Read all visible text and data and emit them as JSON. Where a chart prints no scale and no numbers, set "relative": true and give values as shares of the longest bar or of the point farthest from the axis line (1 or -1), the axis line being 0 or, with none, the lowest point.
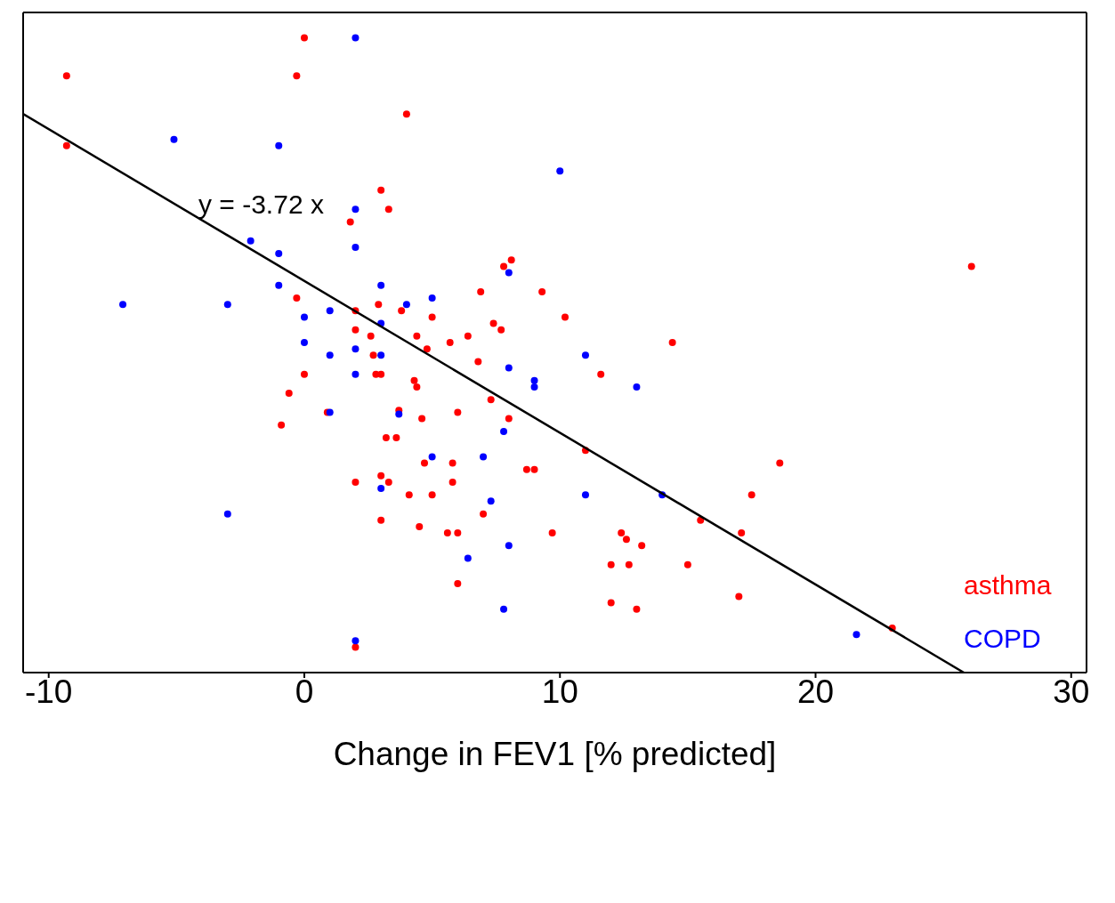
{
  "chart_data": {
    "type": "scatter",
    "xlabel": "Change in FEV1 [% predicted]",
    "xlim": [
      -11,
      30.6
    ],
    "xticks": [
      -10,
      0,
      10,
      20,
      30
    ],
    "relative": true,
    "tick_labels": "x",
    "legend": "bottom right",
    "marker": "circle",
    "annotations": [
      "y = -3.72 x"
    ],
    "series": [
      {
        "name": "asthma",
        "color": "#ff0000",
        "x": [
          0,
          -9.3,
          -0.3,
          4.0,
          -9.3,
          3.0,
          3.3,
          1.8,
          8.1,
          7.8,
          26.1,
          9.3,
          6.9,
          -0.3,
          2.9,
          3.8,
          5.0,
          2.0,
          10.2,
          7.4,
          7.7,
          2.0,
          6.4,
          2.6,
          4.4,
          5.7,
          14.4,
          4.8,
          2.7,
          6.8,
          3.0,
          2.8,
          0,
          11.6,
          4.3,
          4.4,
          -0.6,
          7.3,
          3.7,
          6.0,
          0.9,
          8.0,
          4.6,
          -0.9,
          3.2,
          3.6,
          11.0,
          4.7,
          5.8,
          18.6,
          9.0,
          8.7,
          3.0,
          3.3,
          2.0,
          5.8,
          4.1,
          5.0,
          17.5,
          7.0,
          3.0,
          15.5,
          4.5,
          6.0,
          5.6,
          9.7,
          12.4,
          17.1,
          12.6,
          13.2,
          12.0,
          12.7,
          15.0,
          6.0,
          12.0,
          13.0,
          17.0,
          23.0,
          2.0
        ],
        "values": [
          1.0,
          0.94,
          0.94,
          0.88,
          0.83,
          0.76,
          0.73,
          0.71,
          0.65,
          0.64,
          0.64,
          0.6,
          0.6,
          0.59,
          0.58,
          0.57,
          0.56,
          0.57,
          0.56,
          0.55,
          0.54,
          0.54,
          0.53,
          0.53,
          0.53,
          0.52,
          0.52,
          0.51,
          0.5,
          0.49,
          0.47,
          0.47,
          0.47,
          0.47,
          0.46,
          0.45,
          0.44,
          0.43,
          0.413,
          0.41,
          0.41,
          0.4,
          0.4,
          0.39,
          0.37,
          0.37,
          0.35,
          0.33,
          0.33,
          0.33,
          0.32,
          0.32,
          0.31,
          0.3,
          0.3,
          0.3,
          0.28,
          0.28,
          0.28,
          0.25,
          0.24,
          0.24,
          0.23,
          0.22,
          0.22,
          0.22,
          0.22,
          0.22,
          0.21,
          0.2,
          0.17,
          0.17,
          0.17,
          0.14,
          0.11,
          0.1,
          0.12,
          0.07,
          0.04
        ]
      },
      {
        "name": "COPD",
        "color": "#0000ff",
        "x": [
          2.0,
          -5.1,
          -1.0,
          10.0,
          2.0,
          -2.1,
          -1.0,
          2.0,
          8.0,
          -1.0,
          3.0,
          -7.1,
          -3.0,
          4.0,
          5.0,
          1.0,
          0,
          3.0,
          0,
          2.0,
          11.0,
          1.0,
          3.0,
          2.0,
          8.0,
          9.0,
          9.0,
          13.0,
          1.0,
          3.7,
          7.8,
          5.0,
          7.0,
          3.0,
          11.0,
          14.0,
          7.3,
          -3.0,
          6.4,
          8.0,
          7.8,
          21.6,
          2.0
        ],
        "values": [
          1.0,
          0.84,
          0.83,
          0.79,
          0.73,
          0.68,
          0.66,
          0.67,
          0.63,
          0.61,
          0.61,
          0.58,
          0.58,
          0.58,
          0.59,
          0.57,
          0.56,
          0.55,
          0.52,
          0.51,
          0.5,
          0.5,
          0.5,
          0.47,
          0.48,
          0.46,
          0.45,
          0.45,
          0.41,
          0.407,
          0.38,
          0.34,
          0.34,
          0.29,
          0.28,
          0.28,
          0.27,
          0.25,
          0.18,
          0.2,
          0.1,
          0.06,
          0.05
        ]
      },
      {
        "type": "line",
        "color": "#000000",
        "marker": "none",
        "line_style": "solid",
        "x": [
          -11,
          25.8
        ],
        "values": [
          0.88,
          0.0
        ]
      }
    ]
  }
}
